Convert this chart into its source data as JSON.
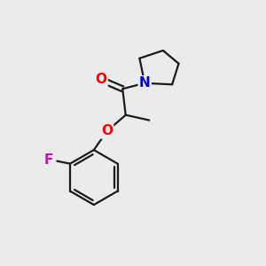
{
  "background_color": "#ebebeb",
  "atom_colors": {
    "O": "#ff0000",
    "N": "#0000cc",
    "F": "#cc00cc",
    "C": "#000000"
  },
  "bond_color": "#1a1a1a",
  "bond_width": 1.6,
  "font_size_atoms": 11,
  "figsize": [
    3.0,
    3.0
  ],
  "dpi": 100,
  "xlim": [
    0,
    10
  ],
  "ylim": [
    0,
    10
  ]
}
